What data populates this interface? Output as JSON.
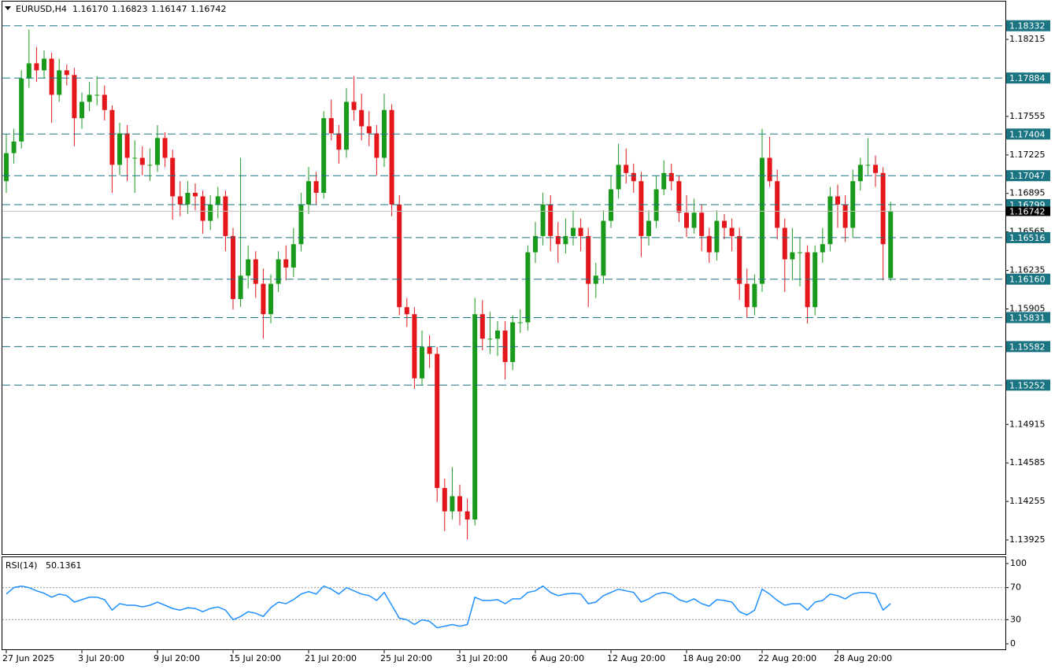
{
  "header": {
    "symbol": "EURUSD,H4",
    "ohlc": [
      "1.16170",
      "1.16823",
      "1.16147",
      "1.16742"
    ]
  },
  "chart_data": [
    {
      "type": "candlestick",
      "categories": [
        "27 Jun 2025",
        null,
        null,
        null,
        null,
        null,
        null,
        null,
        null,
        null,
        "3 Jul 20:00",
        null,
        null,
        null,
        null,
        null,
        null,
        null,
        null,
        null,
        "9 Jul 20:00",
        null,
        null,
        null,
        null,
        null,
        null,
        null,
        null,
        null,
        "15 Jul 20:00",
        null,
        null,
        null,
        null,
        null,
        null,
        null,
        null,
        null,
        "21 Jul 20:00",
        null,
        null,
        null,
        null,
        null,
        null,
        null,
        null,
        null,
        "25 Jul 20:00",
        null,
        null,
        null,
        null,
        null,
        null,
        null,
        null,
        null,
        "31 Jul 20:00",
        null,
        null,
        null,
        null,
        null,
        null,
        null,
        null,
        null,
        "6 Aug 20:00",
        null,
        null,
        null,
        null,
        null,
        null,
        null,
        null,
        null,
        "12 Aug 20:00",
        null,
        null,
        null,
        null,
        null,
        null,
        null,
        null,
        null,
        "18 Aug 20:00",
        null,
        null,
        null,
        null,
        null,
        null,
        null,
        null,
        null,
        "22 Aug 20:00",
        null,
        null,
        null,
        null,
        null,
        null,
        null,
        null,
        null,
        "28 Aug 20:00",
        null,
        null,
        null,
        null,
        null,
        null,
        null
      ],
      "open": [
        1.17,
        1.1724,
        1.1734,
        1.1788,
        1.1801,
        1.1795,
        1.1805,
        1.1774,
        1.1795,
        1.1791,
        1.1754,
        1.1768,
        1.1774,
        1.1774,
        1.1761,
        1.1714,
        1.1741,
        1.172,
        1.172,
        1.1714,
        1.1714,
        1.1737,
        1.172,
        1.1687,
        1.168,
        1.169,
        1.1687,
        1.1666,
        1.168,
        1.1687,
        1.1653,
        1.1599,
        1.1619,
        1.1633,
        1.1612,
        1.1586,
        1.1612,
        1.1633,
        1.1626,
        1.1646,
        1.168,
        1.17,
        1.169,
        1.1754,
        1.1741,
        1.1727,
        1.1768,
        1.1761,
        1.1747,
        1.1741,
        1.172,
        1.1761,
        1.168,
        1.1592,
        1.1586,
        1.1531,
        1.1558,
        1.1552,
        1.1437,
        1.1417,
        1.143,
        1.1417,
        1.141,
        1.1586,
        1.1565,
        1.1565,
        1.1572,
        1.1545,
        1.1579,
        1.1579,
        1.1639,
        1.1653,
        1.168,
        1.1653,
        1.1646,
        1.1653,
        1.166,
        1.1653,
        1.1612,
        1.1619,
        1.1666,
        1.1693,
        1.1714,
        1.1707,
        1.17,
        1.1653,
        1.1666,
        1.1693,
        1.1707,
        1.17,
        1.1673,
        1.166,
        1.1673,
        1.1653,
        1.1639,
        1.1666,
        1.166,
        1.1653,
        1.1612,
        1.1592,
        1.1612,
        1.172,
        1.17,
        1.166,
        1.1633,
        1.1639,
        1.1639,
        1.1592,
        1.1639,
        1.1646,
        1.1687,
        1.168,
        1.166,
        1.17,
        1.1714,
        1.1714,
        1.1707,
        1.1617
      ],
      "high": [
        1.174,
        1.1745,
        1.1795,
        1.183,
        1.1815,
        1.1812,
        1.181,
        1.1805,
        1.18,
        1.1797,
        1.1776,
        1.1785,
        1.179,
        1.1782,
        1.1765,
        1.175,
        1.1748,
        1.1735,
        1.173,
        1.1728,
        1.1748,
        1.1742,
        1.1727,
        1.17,
        1.17,
        1.1698,
        1.1692,
        1.1688,
        1.1695,
        1.1692,
        1.166,
        1.172,
        1.1645,
        1.164,
        1.1625,
        1.162,
        1.164,
        1.1645,
        1.166,
        1.169,
        1.1712,
        1.1708,
        1.176,
        1.177,
        1.1748,
        1.178,
        1.179,
        1.1775,
        1.176,
        1.1748,
        1.1775,
        1.1766,
        1.1688,
        1.16,
        1.1592,
        1.1572,
        1.1568,
        1.1558,
        1.1445,
        1.1455,
        1.144,
        1.1428,
        1.16,
        1.1598,
        1.1588,
        1.158,
        1.158,
        1.1585,
        1.159,
        1.1645,
        1.1665,
        1.169,
        1.1688,
        1.1665,
        1.1668,
        1.1675,
        1.1668,
        1.166,
        1.163,
        1.1675,
        1.1705,
        1.1732,
        1.1728,
        1.1715,
        1.1708,
        1.1675,
        1.1705,
        1.1718,
        1.1715,
        1.1705,
        1.1688,
        1.1685,
        1.168,
        1.166,
        1.1675,
        1.1672,
        1.1668,
        1.166,
        1.1625,
        1.162,
        1.1745,
        1.1738,
        1.171,
        1.1668,
        1.166,
        1.1652,
        1.1645,
        1.1645,
        1.166,
        1.1695,
        1.1697,
        1.1688,
        1.171,
        1.172,
        1.1737,
        1.1722,
        1.1712,
        1.16823
      ],
      "low": [
        1.169,
        1.1715,
        1.1728,
        1.178,
        1.1785,
        1.1788,
        1.175,
        1.1768,
        1.1782,
        1.173,
        1.1745,
        1.176,
        1.1765,
        1.1752,
        1.169,
        1.1705,
        1.17,
        1.169,
        1.1705,
        1.17,
        1.1708,
        1.1712,
        1.1667,
        1.167,
        1.1672,
        1.1675,
        1.1655,
        1.1658,
        1.1668,
        1.164,
        1.159,
        1.1592,
        1.1608,
        1.16,
        1.1565,
        1.1578,
        1.1605,
        1.1615,
        1.1618,
        1.164,
        1.1672,
        1.168,
        1.1685,
        1.1735,
        1.1715,
        1.172,
        1.1752,
        1.1735,
        1.173,
        1.1705,
        1.1712,
        1.167,
        1.1585,
        1.1575,
        1.1522,
        1.1525,
        1.154,
        1.1425,
        1.14,
        1.141,
        1.1405,
        1.1393,
        1.1405,
        1.1555,
        1.1552,
        1.155,
        1.153,
        1.1538,
        1.157,
        1.1572,
        1.163,
        1.1645,
        1.164,
        1.163,
        1.1638,
        1.1645,
        1.164,
        1.1592,
        1.16,
        1.1612,
        1.166,
        1.1685,
        1.1698,
        1.169,
        1.1635,
        1.1645,
        1.166,
        1.1688,
        1.1692,
        1.1665,
        1.1652,
        1.1655,
        1.164,
        1.163,
        1.1632,
        1.165,
        1.164,
        1.1598,
        1.1583,
        1.1585,
        1.1605,
        1.1695,
        1.165,
        1.1605,
        1.1615,
        1.161,
        1.1578,
        1.1585,
        1.163,
        1.164,
        1.166,
        1.1648,
        1.1652,
        1.1692,
        1.1705,
        1.1695,
        1.1615,
        1.16147
      ],
      "close": [
        1.1724,
        1.1734,
        1.1788,
        1.1801,
        1.1795,
        1.1805,
        1.1774,
        1.1795,
        1.1791,
        1.1754,
        1.1768,
        1.1774,
        1.1774,
        1.1761,
        1.1714,
        1.1741,
        1.172,
        1.172,
        1.1714,
        1.1714,
        1.1737,
        1.172,
        1.1687,
        1.168,
        1.169,
        1.1687,
        1.1666,
        1.168,
        1.1687,
        1.1653,
        1.1599,
        1.1619,
        1.1633,
        1.1612,
        1.1586,
        1.1612,
        1.1633,
        1.1626,
        1.1646,
        1.168,
        1.17,
        1.169,
        1.1754,
        1.1741,
        1.1727,
        1.1768,
        1.1761,
        1.1747,
        1.1741,
        1.172,
        1.1761,
        1.168,
        1.1592,
        1.1586,
        1.1531,
        1.1558,
        1.1552,
        1.1437,
        1.1417,
        1.143,
        1.1417,
        1.141,
        1.1586,
        1.1565,
        1.1565,
        1.1572,
        1.1545,
        1.1579,
        1.1579,
        1.1639,
        1.1653,
        1.168,
        1.1653,
        1.1646,
        1.1653,
        1.166,
        1.1653,
        1.1612,
        1.1619,
        1.1666,
        1.1693,
        1.1714,
        1.1707,
        1.17,
        1.1653,
        1.1666,
        1.1693,
        1.1707,
        1.17,
        1.1673,
        1.166,
        1.1673,
        1.1653,
        1.1639,
        1.1666,
        1.166,
        1.1653,
        1.1612,
        1.1592,
        1.1612,
        1.172,
        1.17,
        1.166,
        1.1633,
        1.1639,
        1.1639,
        1.1592,
        1.1639,
        1.1646,
        1.1687,
        1.168,
        1.166,
        1.17,
        1.1714,
        1.1714,
        1.1707,
        1.1646,
        1.16742
      ],
      "up_color": "#1a9a1a",
      "down_color": "#e3161b",
      "ylim": [
        1.13797,
        1.18546
      ],
      "yticks": [
        1.18215,
        1.17555,
        1.17225,
        1.16895,
        1.16565,
        1.16235,
        1.15905,
        1.14915,
        1.14585,
        1.14255,
        1.13925
      ],
      "levels": [
        1.18332,
        1.17884,
        1.17404,
        1.17047,
        1.16799,
        1.16516,
        {
          "value": 1.1616,
          "label": "1.16160"
        },
        1.15831,
        1.15582,
        1.15252
      ],
      "level_color": "#1b7482",
      "current_price": 1.16742,
      "current_price_color": "#c0c0c0"
    },
    {
      "type": "line",
      "name": "RSI(14)",
      "color": "#1e90ff",
      "values": [
        62,
        70,
        72,
        70,
        66,
        63,
        58,
        62,
        60,
        52,
        55,
        58,
        58,
        55,
        42,
        50,
        48,
        48,
        46,
        48,
        52,
        48,
        44,
        42,
        45,
        44,
        40,
        44,
        46,
        42,
        30,
        34,
        40,
        38,
        34,
        45,
        52,
        50,
        55,
        62,
        65,
        62,
        72,
        68,
        62,
        70,
        66,
        62,
        60,
        54,
        64,
        48,
        32,
        30,
        24,
        30,
        28,
        20,
        22,
        24,
        22,
        24,
        58,
        54,
        54,
        55,
        50,
        56,
        56,
        64,
        66,
        72,
        64,
        60,
        62,
        63,
        62,
        50,
        52,
        60,
        64,
        68,
        66,
        64,
        52,
        56,
        62,
        64,
        62,
        55,
        52,
        56,
        50,
        47,
        55,
        54,
        52,
        40,
        36,
        42,
        68,
        62,
        54,
        48,
        50,
        50,
        42,
        52,
        54,
        62,
        60,
        56,
        62,
        64,
        64,
        62,
        42,
        50.1361
      ],
      "ylim": [
        0,
        100
      ],
      "yticks": [
        100,
        70,
        30,
        0
      ],
      "levels": [
        70,
        30
      ]
    }
  ]
}
